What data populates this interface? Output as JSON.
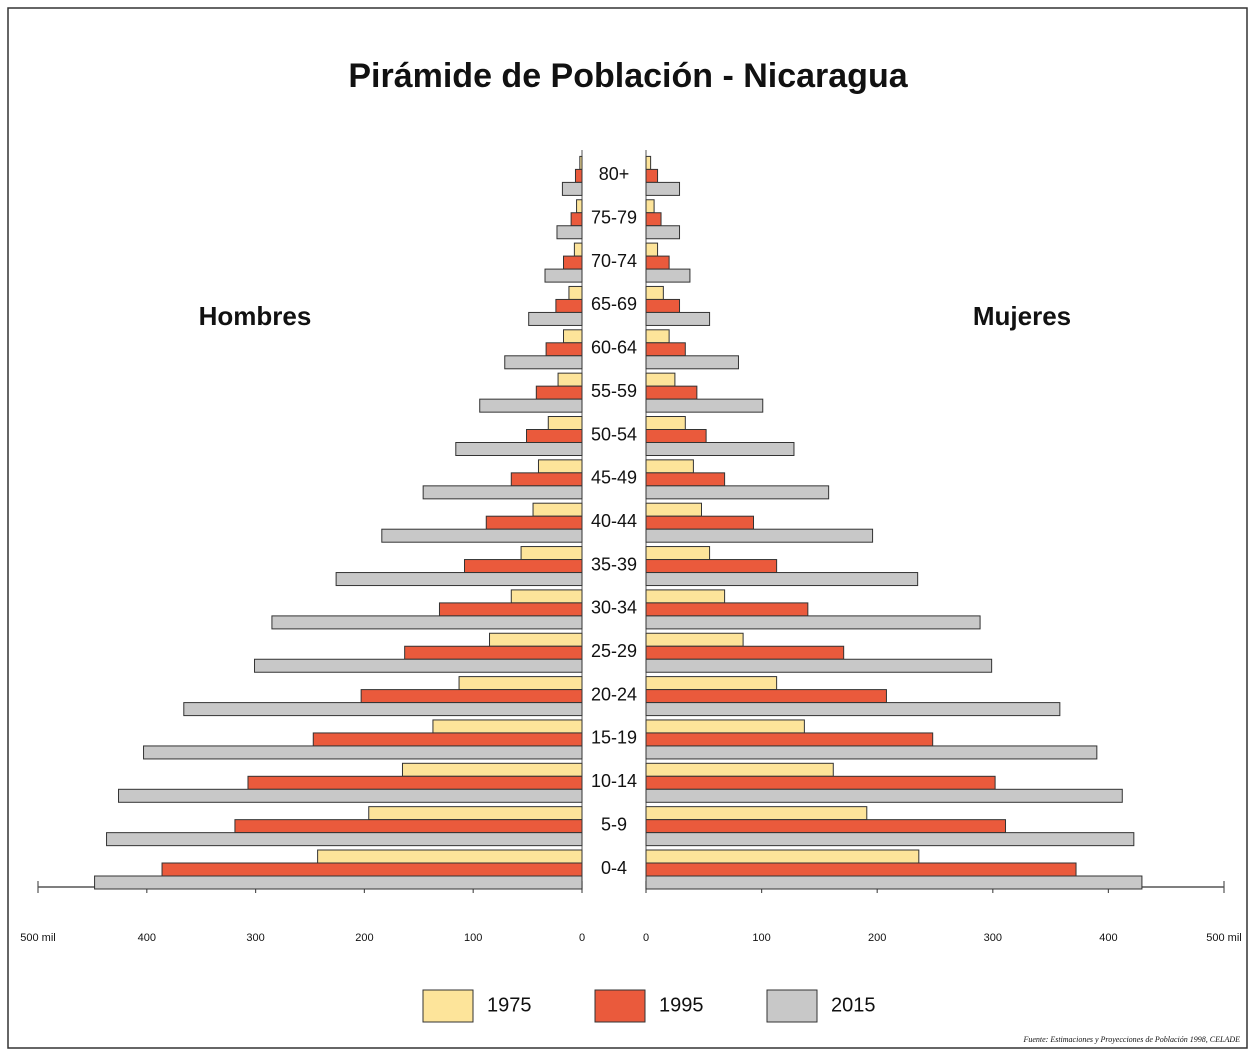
{
  "chart_data": {
    "type": "population_pyramid",
    "title": "Pirámide de Población - Nicaragua",
    "left_label": "Hombres",
    "right_label": "Mujeres",
    "source": "Fuente: Estimaciones y Proyecciones de Población 1998, CELADE",
    "categories": [
      "0-4",
      "5-9",
      "10-14",
      "15-19",
      "20-24",
      "25-29",
      "30-34",
      "35-39",
      "40-44",
      "45-49",
      "50-54",
      "55-59",
      "60-64",
      "65-69",
      "70-74",
      "75-79",
      "80+"
    ],
    "series": [
      {
        "name": "1975",
        "color": "#fde49a",
        "hombres": [
          243,
          196,
          165,
          137,
          113,
          85,
          65,
          56,
          45,
          40,
          31,
          22,
          17,
          12,
          7,
          5,
          2
        ],
        "mujeres": [
          236,
          191,
          162,
          137,
          113,
          84,
          68,
          55,
          48,
          41,
          34,
          25,
          20,
          15,
          10,
          7,
          4
        ]
      },
      {
        "name": "1995",
        "color": "#ea5a3c",
        "hombres": [
          386,
          319,
          307,
          247,
          203,
          163,
          131,
          108,
          88,
          65,
          51,
          42,
          33,
          24,
          17,
          10,
          6
        ],
        "mujeres": [
          372,
          311,
          302,
          248,
          208,
          171,
          140,
          113,
          93,
          68,
          52,
          44,
          34,
          29,
          20,
          13,
          10
        ]
      },
      {
        "name": "2015",
        "color": "#c8c8c8",
        "hombres": [
          448,
          437,
          426,
          403,
          366,
          301,
          285,
          226,
          184,
          146,
          116,
          94,
          71,
          49,
          34,
          23,
          18
        ],
        "mujeres": [
          429,
          422,
          412,
          390,
          358,
          299,
          289,
          235,
          196,
          158,
          128,
          101,
          80,
          55,
          38,
          29,
          29
        ]
      }
    ],
    "xlim": [
      0,
      500
    ],
    "xticks": [
      0,
      100,
      200,
      300,
      400,
      {
        "value": 500,
        "label": "500 mil"
      }
    ]
  }
}
